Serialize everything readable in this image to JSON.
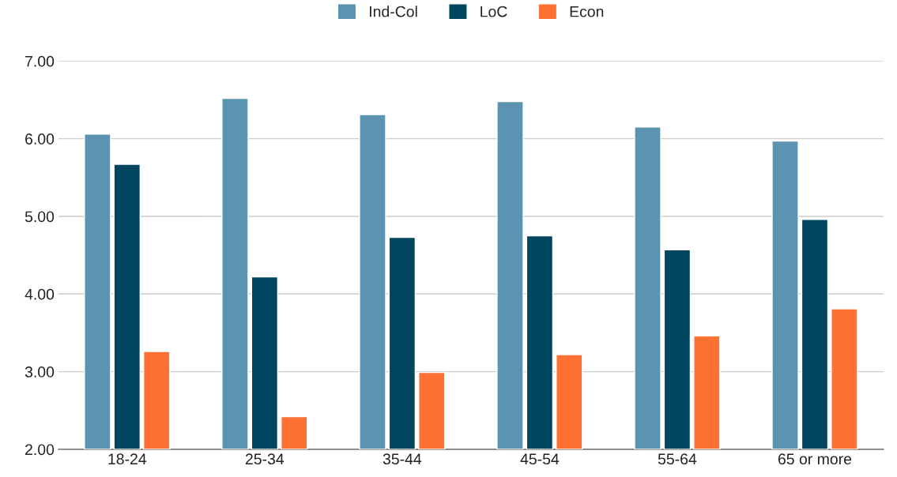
{
  "chart_data": {
    "type": "bar",
    "categories": [
      "18-24",
      "25-34",
      "35-44",
      "45-54",
      "55-64",
      "65 or more"
    ],
    "series": [
      {
        "name": "Ind-Col",
        "color": "#5b93b1",
        "values": [
          6.06,
          6.52,
          6.31,
          6.48,
          6.15,
          5.97
        ]
      },
      {
        "name": "LoC",
        "color": "#014660",
        "values": [
          5.67,
          4.22,
          4.73,
          4.75,
          4.57,
          4.96
        ]
      },
      {
        "name": "Econ",
        "color": "#ff7133",
        "values": [
          3.26,
          2.42,
          2.99,
          3.22,
          3.46,
          3.81
        ]
      }
    ],
    "ylim": [
      2,
      7
    ],
    "yticks": [
      {
        "value": 2,
        "label": "2.00"
      },
      {
        "value": 3,
        "label": "3.00"
      },
      {
        "value": 4,
        "label": "4.00"
      },
      {
        "value": 5,
        "label": "5.00"
      },
      {
        "value": 6,
        "label": "6.00"
      },
      {
        "value": 7,
        "label": "7.00"
      }
    ],
    "grid": "y",
    "legend": "top"
  }
}
